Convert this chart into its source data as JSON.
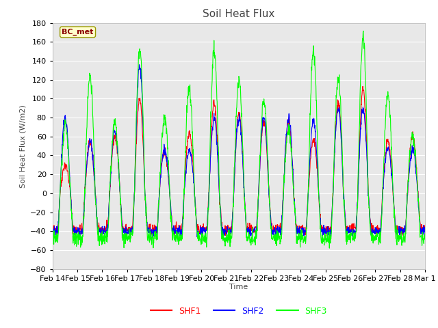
{
  "title": "Soil Heat Flux",
  "ylabel": "Soil Heat Flux (W/m2)",
  "xlabel": "Time",
  "ylim": [
    -80,
    180
  ],
  "bg_color": "#e8e8e8",
  "grid_color": "white",
  "shf1_color": "red",
  "shf2_color": "blue",
  "shf3_color": "lime",
  "legend_box_color": "#ffffcc",
  "legend_box_edge": "#999900",
  "annotation_text": "BC_met",
  "annotation_color": "#8B0000",
  "yticks": [
    -80,
    -60,
    -40,
    -20,
    0,
    20,
    40,
    60,
    80,
    100,
    120,
    140,
    160,
    180
  ],
  "xtick_labels": [
    "Feb 14",
    "Feb 15",
    "Feb 16",
    "Feb 17",
    "Feb 18",
    "Feb 19",
    "Feb 20",
    "Feb 21",
    "Feb 22",
    "Feb 23",
    "Feb 24",
    "Feb 25",
    "Feb 26",
    "Feb 27",
    "Feb 28",
    "Mar 1"
  ],
  "n_days": 15,
  "points_per_day": 96,
  "shf1_peaks": [
    30,
    55,
    60,
    100,
    45,
    65,
    95,
    85,
    75,
    75,
    55,
    95,
    110,
    55,
    60
  ],
  "shf2_peaks": [
    80,
    55,
    65,
    135,
    45,
    45,
    80,
    80,
    80,
    80,
    75,
    90,
    90,
    48,
    45
  ],
  "shf3_peaks": [
    70,
    125,
    75,
    150,
    80,
    110,
    150,
    120,
    98,
    65,
    150,
    120,
    165,
    105,
    60
  ]
}
